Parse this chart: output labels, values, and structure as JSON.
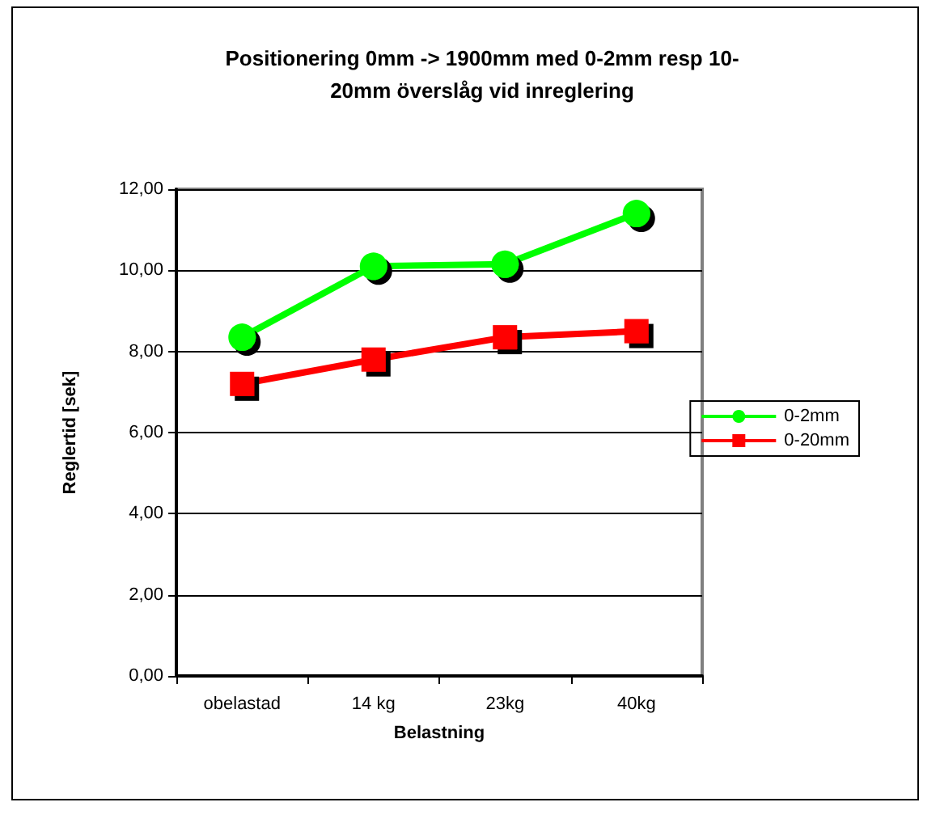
{
  "chart_data": {
    "type": "line",
    "title": "Positionering 0mm -> 1900mm med 0-2mm resp 10-\n20mm överslåg vid inreglering",
    "xlabel": "Belastning",
    "ylabel": "Reglertid [sek]",
    "categories": [
      "obelastad",
      "14 kg",
      "23kg",
      "40kg"
    ],
    "series": [
      {
        "name": "0-2mm",
        "color": "#00ff00",
        "marker": "circle",
        "values": [
          8.35,
          10.1,
          10.15,
          11.4
        ]
      },
      {
        "name": "0-20mm",
        "color": "#ff0000",
        "marker": "square",
        "values": [
          7.2,
          7.8,
          8.35,
          8.5
        ]
      }
    ],
    "ylim": [
      0,
      12
    ],
    "yticks": [
      {
        "value": 0,
        "label": "0,00"
      },
      {
        "value": 2,
        "label": "2,00"
      },
      {
        "value": 4,
        "label": "4,00"
      },
      {
        "value": 6,
        "label": "6,00"
      },
      {
        "value": 8,
        "label": "8,00"
      },
      {
        "value": 10,
        "label": "10,00"
      },
      {
        "value": 12,
        "label": "12,00"
      }
    ],
    "grid": "y",
    "legend": "right"
  }
}
